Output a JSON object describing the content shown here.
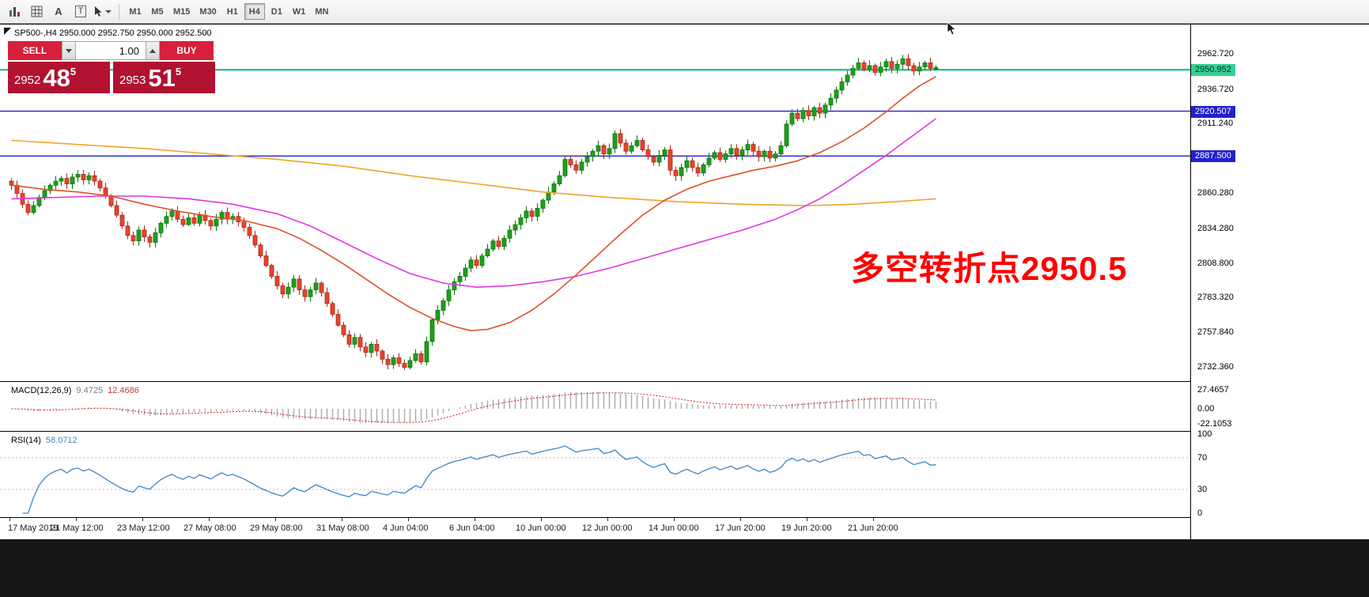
{
  "toolbar": {
    "text_tool": "A",
    "frame_tool": "T",
    "tool_icons": [
      "bar-chart-icon",
      "grid-icon",
      "text-tool-icon",
      "frame-tool-icon",
      "cursor-tool-icon"
    ]
  },
  "timeframes": {
    "items": [
      "M1",
      "M5",
      "M15",
      "M30",
      "H1",
      "H4",
      "D1",
      "W1",
      "MN"
    ],
    "active": "H4"
  },
  "chart": {
    "symbol_info": "SP500-,H4 2950.000 2952.750 2950.000 2952.500",
    "annotation": {
      "text": "多空转折点2950.5",
      "color": "#ff0000"
    },
    "trade": {
      "sell_label": "SELL",
      "buy_label": "BUY",
      "volume": "1.00",
      "sell_price_main": "2952",
      "sell_price_big": "48",
      "sell_price_sup": "5",
      "buy_price_main": "2953",
      "buy_price_big": "51",
      "buy_price_sup": "5"
    },
    "axis": {
      "price_ticks": [
        "2962.720",
        "2936.720",
        "2911.240",
        "2860.280",
        "2834.280",
        "2808.800",
        "2783.320",
        "2757.840",
        "2732.360"
      ],
      "badges": [
        {
          "text": "2950.952",
          "bg": "#35cf92",
          "fg": "#00331f",
          "price": 2950.952
        },
        {
          "text": "2920.507",
          "bg": "#2121cc",
          "fg": "#ffffff",
          "price": 2920.507
        },
        {
          "text": "2887.500",
          "bg": "#2121cc",
          "fg": "#ffffff",
          "price": 2887.5
        }
      ]
    }
  },
  "chart_data": {
    "type": "candlestick",
    "symbol": "SP500-",
    "timeframe": "H4",
    "ohlc_current": {
      "open": 2950.0,
      "high": 2952.75,
      "low": 2950.0,
      "close": 2952.5
    },
    "first_open": 2869,
    "closes": [
      2866,
      2860,
      2852,
      2846,
      2851,
      2857,
      2862,
      2866,
      2869,
      2871,
      2867,
      2872,
      2874,
      2870,
      2873,
      2869,
      2864,
      2858,
      2851,
      2844,
      2836,
      2829,
      2825,
      2833,
      2828,
      2824,
      2831,
      2838,
      2843,
      2847,
      2841,
      2837,
      2842,
      2838,
      2844,
      2840,
      2836,
      2841,
      2846,
      2841,
      2843,
      2839,
      2835,
      2829,
      2822,
      2814,
      2807,
      2799,
      2792,
      2786,
      2791,
      2797,
      2789,
      2784,
      2789,
      2794,
      2787,
      2779,
      2771,
      2763,
      2756,
      2749,
      2754,
      2747,
      2743,
      2749,
      2744,
      2738,
      2734,
      2739,
      2735,
      2732,
      2737,
      2742,
      2736,
      2751,
      2767,
      2774,
      2781,
      2789,
      2795,
      2799,
      2805,
      2811,
      2807,
      2814,
      2819,
      2825,
      2821,
      2827,
      2833,
      2837,
      2842,
      2847,
      2843,
      2849,
      2855,
      2861,
      2867,
      2873,
      2885,
      2881,
      2877,
      2883,
      2887,
      2891,
      2895,
      2889,
      2893,
      2904,
      2897,
      2891,
      2895,
      2899,
      2892,
      2887,
      2883,
      2888,
      2892,
      2877,
      2873,
      2879,
      2884,
      2879,
      2875,
      2881,
      2886,
      2890,
      2885,
      2889,
      2893,
      2888,
      2892,
      2896,
      2891,
      2887,
      2891,
      2886,
      2889,
      2895,
      2911,
      2919,
      2915,
      2921,
      2917,
      2923,
      2919,
      2925,
      2930,
      2936,
      2942,
      2947,
      2952,
      2956,
      2951,
      2954,
      2949,
      2953,
      2957,
      2952,
      2955,
      2959,
      2954,
      2950,
      2953,
      2956,
      2952,
      2952.5
    ],
    "colors": {
      "bull": "#1ba11b",
      "bull_stroke": "#0d720d",
      "bear": "#e8432d",
      "bear_stroke": "#a5281b"
    },
    "hlines": [
      {
        "price": 2950.952,
        "color": "#00c076",
        "width": 2
      },
      {
        "price": 2920.507,
        "color": "#2121cc",
        "width": 1.4
      },
      {
        "price": 2887.5,
        "color": "#2121cc",
        "width": 1.4
      }
    ],
    "moving_averages": [
      {
        "name": "ma-slow-orange",
        "color": "#efa529",
        "width": 1.6,
        "points": [
          [
            0,
            2899
          ],
          [
            12,
            2896
          ],
          [
            24,
            2893
          ],
          [
            36,
            2889
          ],
          [
            48,
            2885
          ],
          [
            60,
            2880
          ],
          [
            72,
            2873
          ],
          [
            84,
            2867
          ],
          [
            96,
            2861
          ],
          [
            108,
            2857
          ],
          [
            120,
            2854
          ],
          [
            132,
            2852
          ],
          [
            144,
            2851
          ],
          [
            152,
            2852
          ],
          [
            160,
            2854
          ],
          [
            167,
            2856
          ]
        ]
      },
      {
        "name": "ma-medium-magenta",
        "color": "#e236e2",
        "width": 1.6,
        "points": [
          [
            0,
            2856
          ],
          [
            8,
            2857
          ],
          [
            16,
            2858
          ],
          [
            24,
            2858
          ],
          [
            32,
            2856
          ],
          [
            40,
            2852
          ],
          [
            48,
            2845
          ],
          [
            54,
            2836
          ],
          [
            60,
            2824
          ],
          [
            66,
            2812
          ],
          [
            72,
            2801
          ],
          [
            78,
            2794
          ],
          [
            84,
            2791
          ],
          [
            90,
            2792
          ],
          [
            96,
            2795
          ],
          [
            102,
            2799
          ],
          [
            108,
            2805
          ],
          [
            114,
            2812
          ],
          [
            120,
            2819
          ],
          [
            126,
            2826
          ],
          [
            132,
            2833
          ],
          [
            138,
            2841
          ],
          [
            142,
            2848
          ],
          [
            146,
            2856
          ],
          [
            150,
            2866
          ],
          [
            154,
            2877
          ],
          [
            158,
            2888
          ],
          [
            161,
            2897
          ],
          [
            164,
            2906
          ],
          [
            167,
            2915
          ]
        ]
      },
      {
        "name": "ma-fast-red",
        "color": "#e0512a",
        "width": 1.6,
        "points": [
          [
            0,
            2866
          ],
          [
            6,
            2863
          ],
          [
            12,
            2861
          ],
          [
            18,
            2858
          ],
          [
            24,
            2852
          ],
          [
            30,
            2847
          ],
          [
            36,
            2843
          ],
          [
            42,
            2840
          ],
          [
            48,
            2834
          ],
          [
            52,
            2827
          ],
          [
            56,
            2818
          ],
          [
            60,
            2808
          ],
          [
            64,
            2797
          ],
          [
            68,
            2786
          ],
          [
            72,
            2776
          ],
          [
            76,
            2768
          ],
          [
            80,
            2762
          ],
          [
            83,
            2759
          ],
          [
            86,
            2760
          ],
          [
            90,
            2765
          ],
          [
            94,
            2774
          ],
          [
            98,
            2786
          ],
          [
            102,
            2800
          ],
          [
            106,
            2815
          ],
          [
            110,
            2830
          ],
          [
            114,
            2844
          ],
          [
            118,
            2855
          ],
          [
            122,
            2863
          ],
          [
            126,
            2869
          ],
          [
            130,
            2873
          ],
          [
            134,
            2877
          ],
          [
            138,
            2880
          ],
          [
            142,
            2884
          ],
          [
            146,
            2890
          ],
          [
            150,
            2898
          ],
          [
            154,
            2908
          ],
          [
            158,
            2920
          ],
          [
            161,
            2930
          ],
          [
            164,
            2939
          ],
          [
            167,
            2946
          ]
        ]
      }
    ],
    "indicators": {
      "macd": {
        "label": "MACD(12,26,9)",
        "value_main": "9.4725",
        "value_signal": "12.4686",
        "fast": 12,
        "slow": 26,
        "signal": 9,
        "axis": [
          "27.4657",
          "0.00",
          "-22.1053"
        ],
        "hist_color": "#aaaaaa",
        "signal_color": "#d02020"
      },
      "rsi": {
        "label": "RSI(14)",
        "value": "58.0712",
        "period": 14,
        "axis": [
          "100",
          "70",
          "30",
          "0"
        ],
        "levels": [
          70,
          30
        ],
        "line_color": "#3f86c8",
        "level_color": "#c0c0c0"
      }
    },
    "time_axis": [
      "17 May 2019",
      "21 May 12:00",
      "23 May 12:00",
      "27 May 08:00",
      "29 May 08:00",
      "31 May 08:00",
      "4 Jun 04:00",
      "6 Jun 04:00",
      "10 Jun 00:00",
      "12 Jun 00:00",
      "14 Jun 00:00",
      "17 Jun 20:00",
      "19 Jun 20:00",
      "21 Jun 20:00"
    ]
  }
}
